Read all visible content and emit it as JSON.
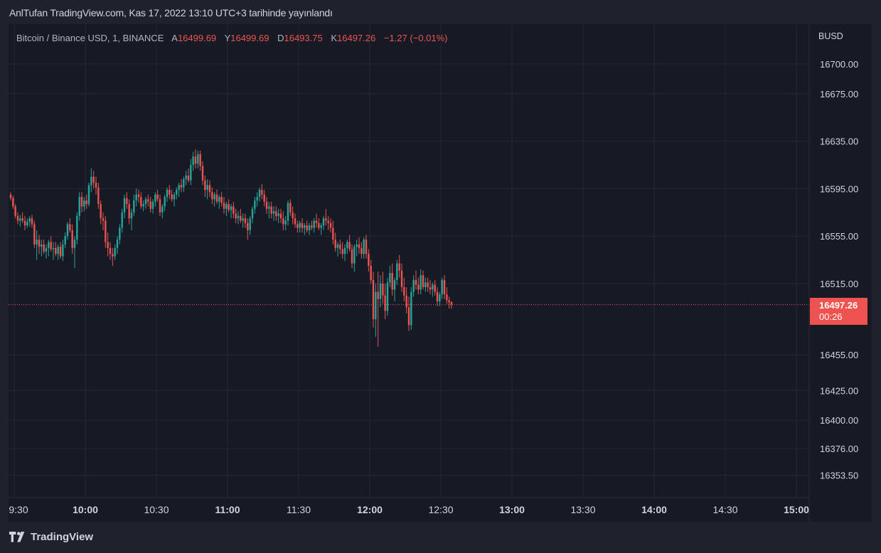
{
  "header": {
    "text": "AnlTufan TradingView.com, Kas 17, 2022 13:10 UTC+3 tarihinde yayınlandı"
  },
  "legend": {
    "symbol": "Bitcoin / Binance USD, 1, BINANCE",
    "open_label": "A",
    "open": "16499.69",
    "high_label": "Y",
    "high": "16499.69",
    "low_label": "D",
    "low": "16493.75",
    "close_label": "K",
    "close": "16497.26",
    "change": "−1.27 (−0.01%)"
  },
  "price_tag": {
    "price": "16497.26",
    "countdown": "00:26"
  },
  "footer": {
    "brand": "TradingView"
  },
  "colors": {
    "up": "#26a69a",
    "down": "#ef5350",
    "bg": "#161a25",
    "grid": "#242833"
  },
  "chart_data": {
    "type": "candlestick",
    "currency_label": "BUSD",
    "y_ticks": [
      "16700.00",
      "16675.00",
      "16635.00",
      "16595.00",
      "16555.00",
      "16515.00",
      "16455.00",
      "16425.00",
      "16400.00",
      "16376.00",
      "16353.50"
    ],
    "y_tick_values": [
      16700,
      16675,
      16635,
      16595,
      16555,
      16515,
      16455,
      16425,
      16400,
      16376,
      16353.5
    ],
    "x_ticks": [
      {
        "label": "9:30",
        "bold": false
      },
      {
        "label": "10:00",
        "bold": true
      },
      {
        "label": "10:30",
        "bold": false
      },
      {
        "label": "11:00",
        "bold": true
      },
      {
        "label": "11:30",
        "bold": false
      },
      {
        "label": "12:00",
        "bold": true
      },
      {
        "label": "12:30",
        "bold": false
      },
      {
        "label": "13:00",
        "bold": true
      },
      {
        "label": "13:30",
        "bold": false
      },
      {
        "label": "14:00",
        "bold": true
      },
      {
        "label": "14:30",
        "bold": false
      },
      {
        "label": "15:00",
        "bold": true
      }
    ],
    "x_tick_minutes": [
      0,
      30,
      60,
      90,
      120,
      150,
      180,
      210,
      240,
      270,
      300,
      330
    ],
    "start_time": "09:30",
    "current_price": 16497.26,
    "candles": [
      [
        16590,
        16592,
        16585,
        16587
      ],
      [
        16587,
        16589,
        16578,
        16580
      ],
      [
        16580,
        16582,
        16570,
        16572
      ],
      [
        16572,
        16575,
        16565,
        16568
      ],
      [
        16568,
        16573,
        16563,
        16570
      ],
      [
        16570,
        16575,
        16566,
        16568
      ],
      [
        16568,
        16572,
        16560,
        16564
      ],
      [
        16564,
        16570,
        16562,
        16567
      ],
      [
        16567,
        16572,
        16563,
        16570
      ],
      [
        16570,
        16573,
        16562,
        16565
      ],
      [
        16565,
        16568,
        16545,
        16548
      ],
      [
        16548,
        16560,
        16535,
        16552
      ],
      [
        16552,
        16556,
        16540,
        16546
      ],
      [
        16546,
        16552,
        16538,
        16548
      ],
      [
        16548,
        16552,
        16540,
        16542
      ],
      [
        16542,
        16548,
        16536,
        16545
      ],
      [
        16545,
        16552,
        16538,
        16550
      ],
      [
        16550,
        16555,
        16542,
        16544
      ],
      [
        16544,
        16550,
        16535,
        16545
      ],
      [
        16545,
        16550,
        16538,
        16540
      ],
      [
        16540,
        16548,
        16535,
        16546
      ],
      [
        16546,
        16550,
        16536,
        16538
      ],
      [
        16538,
        16552,
        16534,
        16548
      ],
      [
        16548,
        16558,
        16545,
        16555
      ],
      [
        16555,
        16567,
        16552,
        16565
      ],
      [
        16565,
        16570,
        16558,
        16560
      ],
      [
        16560,
        16565,
        16540,
        16545
      ],
      [
        16545,
        16555,
        16528,
        16552
      ],
      [
        16552,
        16575,
        16548,
        16572
      ],
      [
        16572,
        16592,
        16568,
        16588
      ],
      [
        16588,
        16592,
        16575,
        16580
      ],
      [
        16580,
        16588,
        16576,
        16585
      ],
      [
        16585,
        16590,
        16578,
        16582
      ],
      [
        16582,
        16600,
        16580,
        16598
      ],
      [
        16598,
        16612,
        16592,
        16605
      ],
      [
        16605,
        16610,
        16595,
        16600
      ],
      [
        16600,
        16605,
        16590,
        16596
      ],
      [
        16596,
        16600,
        16578,
        16582
      ],
      [
        16582,
        16585,
        16565,
        16570
      ],
      [
        16570,
        16575,
        16560,
        16568
      ],
      [
        16568,
        16572,
        16545,
        16550
      ],
      [
        16550,
        16558,
        16538,
        16545
      ],
      [
        16545,
        16550,
        16535,
        16540
      ],
      [
        16540,
        16545,
        16530,
        16538
      ],
      [
        16538,
        16548,
        16535,
        16545
      ],
      [
        16545,
        16555,
        16540,
        16552
      ],
      [
        16552,
        16565,
        16548,
        16562
      ],
      [
        16562,
        16578,
        16558,
        16575
      ],
      [
        16575,
        16590,
        16570,
        16587
      ],
      [
        16587,
        16592,
        16578,
        16582
      ],
      [
        16582,
        16586,
        16565,
        16570
      ],
      [
        16570,
        16578,
        16560,
        16575
      ],
      [
        16575,
        16590,
        16572,
        16585
      ],
      [
        16585,
        16595,
        16580,
        16590
      ],
      [
        16590,
        16594,
        16583,
        16588
      ],
      [
        16588,
        16592,
        16578,
        16580
      ],
      [
        16580,
        16585,
        16576,
        16582
      ],
      [
        16582,
        16588,
        16578,
        16586
      ],
      [
        16586,
        16590,
        16580,
        16584
      ],
      [
        16584,
        16588,
        16575,
        16578
      ],
      [
        16578,
        16586,
        16574,
        16584
      ],
      [
        16584,
        16592,
        16580,
        16590
      ],
      [
        16590,
        16594,
        16584,
        16586
      ],
      [
        16586,
        16590,
        16572,
        16575
      ],
      [
        16575,
        16582,
        16570,
        16580
      ],
      [
        16580,
        16590,
        16576,
        16588
      ],
      [
        16588,
        16596,
        16584,
        16594
      ],
      [
        16594,
        16598,
        16586,
        16590
      ],
      [
        16590,
        16594,
        16584,
        16586
      ],
      [
        16586,
        16592,
        16580,
        16590
      ],
      [
        16590,
        16596,
        16586,
        16594
      ],
      [
        16594,
        16600,
        16588,
        16598
      ],
      [
        16598,
        16603,
        16592,
        16596
      ],
      [
        16596,
        16605,
        16592,
        16603
      ],
      [
        16603,
        16610,
        16598,
        16606
      ],
      [
        16606,
        16612,
        16600,
        16602
      ],
      [
        16602,
        16620,
        16598,
        16615
      ],
      [
        16615,
        16626,
        16610,
        16622
      ],
      [
        16622,
        16628,
        16612,
        16616
      ],
      [
        16616,
        16627,
        16612,
        16624
      ],
      [
        16624,
        16627,
        16610,
        16614
      ],
      [
        16614,
        16618,
        16598,
        16602
      ],
      [
        16602,
        16606,
        16588,
        16594
      ],
      [
        16594,
        16603,
        16586,
        16598
      ],
      [
        16598,
        16602,
        16588,
        16592
      ],
      [
        16592,
        16596,
        16582,
        16586
      ],
      [
        16586,
        16592,
        16580,
        16590
      ],
      [
        16590,
        16594,
        16582,
        16584
      ],
      [
        16584,
        16590,
        16578,
        16588
      ],
      [
        16588,
        16592,
        16580,
        16583
      ],
      [
        16583,
        16588,
        16574,
        16578
      ],
      [
        16578,
        16584,
        16572,
        16582
      ],
      [
        16582,
        16586,
        16575,
        16577
      ],
      [
        16577,
        16582,
        16570,
        16580
      ],
      [
        16580,
        16584,
        16570,
        16574
      ],
      [
        16574,
        16578,
        16566,
        16570
      ],
      [
        16570,
        16576,
        16565,
        16572
      ],
      [
        16572,
        16578,
        16566,
        16568
      ],
      [
        16568,
        16574,
        16562,
        16570
      ],
      [
        16570,
        16574,
        16562,
        16566
      ],
      [
        16566,
        16570,
        16552,
        16560
      ],
      [
        16560,
        16572,
        16556,
        16570
      ],
      [
        16570,
        16580,
        16566,
        16578
      ],
      [
        16578,
        16588,
        16574,
        16585
      ],
      [
        16585,
        16592,
        16580,
        16588
      ],
      [
        16588,
        16596,
        16584,
        16594
      ],
      [
        16594,
        16599,
        16586,
        16590
      ],
      [
        16590,
        16594,
        16580,
        16584
      ],
      [
        16584,
        16588,
        16574,
        16578
      ],
      [
        16578,
        16584,
        16570,
        16580
      ],
      [
        16580,
        16584,
        16570,
        16574
      ],
      [
        16574,
        16580,
        16568,
        16576
      ],
      [
        16576,
        16580,
        16568,
        16572
      ],
      [
        16572,
        16578,
        16566,
        16574
      ],
      [
        16574,
        16578,
        16566,
        16570
      ],
      [
        16570,
        16576,
        16560,
        16565
      ],
      [
        16565,
        16572,
        16560,
        16568
      ],
      [
        16568,
        16585,
        16564,
        16583
      ],
      [
        16583,
        16586,
        16572,
        16575
      ],
      [
        16575,
        16580,
        16565,
        16570
      ],
      [
        16570,
        16574,
        16562,
        16565
      ],
      [
        16565,
        16568,
        16558,
        16562
      ],
      [
        16562,
        16568,
        16558,
        16566
      ],
      [
        16566,
        16570,
        16558,
        16562
      ],
      [
        16562,
        16566,
        16556,
        16564
      ],
      [
        16564,
        16568,
        16558,
        16560
      ],
      [
        16560,
        16566,
        16556,
        16564
      ],
      [
        16564,
        16568,
        16560,
        16562
      ],
      [
        16562,
        16570,
        16558,
        16568
      ],
      [
        16568,
        16574,
        16562,
        16566
      ],
      [
        16566,
        16570,
        16560,
        16562
      ],
      [
        16562,
        16566,
        16556,
        16564
      ],
      [
        16564,
        16572,
        16560,
        16570
      ],
      [
        16570,
        16578,
        16564,
        16568
      ],
      [
        16568,
        16572,
        16560,
        16566
      ],
      [
        16566,
        16570,
        16558,
        16562
      ],
      [
        16562,
        16568,
        16548,
        16552
      ],
      [
        16552,
        16558,
        16542,
        16545
      ],
      [
        16545,
        16550,
        16538,
        16548
      ],
      [
        16548,
        16552,
        16540,
        16544
      ],
      [
        16544,
        16550,
        16536,
        16540
      ],
      [
        16540,
        16548,
        16534,
        16545
      ],
      [
        16545,
        16552,
        16540,
        16550
      ],
      [
        16550,
        16556,
        16542,
        16544
      ],
      [
        16544,
        16548,
        16528,
        16532
      ],
      [
        16532,
        16548,
        16525,
        16546
      ],
      [
        16546,
        16552,
        16538,
        16548
      ],
      [
        16548,
        16554,
        16540,
        16545
      ],
      [
        16545,
        16550,
        16536,
        16540
      ],
      [
        16540,
        16554,
        16536,
        16552
      ],
      [
        16552,
        16556,
        16536,
        16540
      ],
      [
        16540,
        16544,
        16525,
        16530
      ],
      [
        16530,
        16535,
        16515,
        16518
      ],
      [
        16518,
        16525,
        16478,
        16485
      ],
      [
        16485,
        16515,
        16470,
        16508
      ],
      [
        16508,
        16525,
        16462,
        16502
      ],
      [
        16502,
        16522,
        16495,
        16515
      ],
      [
        16515,
        16525,
        16498,
        16505
      ],
      [
        16505,
        16515,
        16485,
        16492
      ],
      [
        16492,
        16520,
        16488,
        16516
      ],
      [
        16516,
        16530,
        16512,
        16524
      ],
      [
        16524,
        16532,
        16505,
        16510
      ],
      [
        16510,
        16520,
        16500,
        16518
      ],
      [
        16518,
        16535,
        16514,
        16532
      ],
      [
        16532,
        16539,
        16520,
        16526
      ],
      [
        16526,
        16532,
        16508,
        16512
      ],
      [
        16512,
        16520,
        16500,
        16505
      ],
      [
        16505,
        16512,
        16490,
        16495
      ],
      [
        16495,
        16504,
        16475,
        16480
      ],
      [
        16480,
        16512,
        16476,
        16508
      ],
      [
        16508,
        16522,
        16504,
        16518
      ],
      [
        16518,
        16526,
        16510,
        16514
      ],
      [
        16514,
        16520,
        16506,
        16510
      ],
      [
        16510,
        16527,
        16506,
        16522
      ],
      [
        16522,
        16526,
        16510,
        16512
      ],
      [
        16512,
        16520,
        16508,
        16516
      ],
      [
        16516,
        16520,
        16508,
        16512
      ],
      [
        16512,
        16518,
        16506,
        16510
      ],
      [
        16510,
        16516,
        16504,
        16514
      ],
      [
        16514,
        16518,
        16505,
        16508
      ],
      [
        16508,
        16512,
        16496,
        16500
      ],
      [
        16500,
        16508,
        16496,
        16506
      ],
      [
        16506,
        16520,
        16502,
        16518
      ],
      [
        16518,
        16522,
        16502,
        16506
      ],
      [
        16506,
        16512,
        16498,
        16501
      ],
      [
        16501,
        16504,
        16494,
        16499
      ],
      [
        16499.69,
        16499.69,
        16493.75,
        16497.26
      ]
    ]
  }
}
